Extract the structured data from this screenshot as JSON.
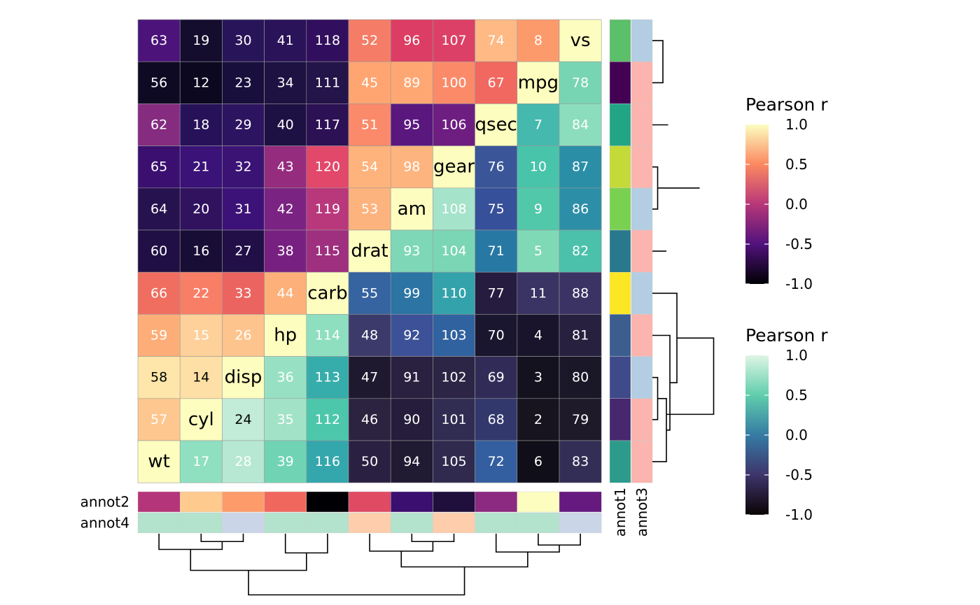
{
  "chart_data": {
    "type": "heatmap",
    "rows": [
      "vs",
      "mpg",
      "qsec",
      "gear",
      "am",
      "drat",
      "carb",
      "hp",
      "disp",
      "cyl",
      "wt"
    ],
    "cols": [
      "wt",
      "cyl",
      "disp",
      "hp",
      "carb",
      "drat",
      "am",
      "gear",
      "qsec",
      "mpg",
      "vs"
    ],
    "cells": [
      {
        "fill": "#4c137a",
        "label": "63"
      },
      {
        "fill": "#140d2e",
        "label": "19"
      },
      {
        "fill": "#281559",
        "label": "30"
      },
      {
        "fill": "#2a1359",
        "label": "41"
      },
      {
        "fill": "#320f5e",
        "label": "118"
      },
      {
        "fill": "#f57d67",
        "label": "52"
      },
      {
        "fill": "#dc3d64",
        "label": "96"
      },
      {
        "fill": "#dd4066",
        "label": "107"
      },
      {
        "fill": "#feb984",
        "label": "74"
      },
      {
        "fill": "#fd9a6c",
        "label": "8"
      },
      {
        "fill": "#fcfdbf",
        "label": "vs"
      },
      {
        "fill": "#0f0a24",
        "label": "56"
      },
      {
        "fill": "#0b0820",
        "label": "12"
      },
      {
        "fill": "#180f3d",
        "label": "23"
      },
      {
        "fill": "#1e1243",
        "label": "34"
      },
      {
        "fill": "#231449",
        "label": "111"
      },
      {
        "fill": "#fea572",
        "label": "45"
      },
      {
        "fill": "#fea773",
        "label": "89"
      },
      {
        "fill": "#fb8a69",
        "label": "100"
      },
      {
        "fill": "#f0685f",
        "label": "67"
      },
      {
        "fill": "#fcfdbf",
        "label": "mpg"
      },
      {
        "fill": "#78d5b3",
        "label": "78"
      },
      {
        "fill": "#852c80",
        "label": "62"
      },
      {
        "fill": "#27125a",
        "label": "18"
      },
      {
        "fill": "#2d1460",
        "label": "29"
      },
      {
        "fill": "#1d1042",
        "label": "40"
      },
      {
        "fill": "#2c1155",
        "label": "117"
      },
      {
        "fill": "#fb8a6a",
        "label": "51"
      },
      {
        "fill": "#5a187e",
        "label": "95"
      },
      {
        "fill": "#6e1e81",
        "label": "106"
      },
      {
        "fill": "#fcfdbf",
        "label": "qsec"
      },
      {
        "fill": "#45b9ad",
        "label": "7"
      },
      {
        "fill": "#8bddbd",
        "label": "84"
      },
      {
        "fill": "#3b0f6f",
        "label": "65"
      },
      {
        "fill": "#3b1278",
        "label": "21"
      },
      {
        "fill": "#3b1374",
        "label": "32"
      },
      {
        "fill": "#962c7e",
        "label": "43"
      },
      {
        "fill": "#e2486a",
        "label": "120"
      },
      {
        "fill": "#feb37c",
        "label": "54"
      },
      {
        "fill": "#feb47e",
        "label": "98"
      },
      {
        "fill": "#fcfdbf",
        "label": "gear"
      },
      {
        "fill": "#3a5699",
        "label": "76"
      },
      {
        "fill": "#48c4aa",
        "label": "10"
      },
      {
        "fill": "#2b8ea7",
        "label": "87"
      },
      {
        "fill": "#26124e",
        "label": "64"
      },
      {
        "fill": "#30125f",
        "label": "20"
      },
      {
        "fill": "#3d1278",
        "label": "31"
      },
      {
        "fill": "#7b2382",
        "label": "42"
      },
      {
        "fill": "#b9377b",
        "label": "119"
      },
      {
        "fill": "#fdb37d",
        "label": "53"
      },
      {
        "fill": "#fcfdbf",
        "label": "am"
      },
      {
        "fill": "#a5e3cb",
        "label": "108"
      },
      {
        "fill": "#37509a",
        "label": "75"
      },
      {
        "fill": "#52c8aa",
        "label": "9"
      },
      {
        "fill": "#2d8fa7",
        "label": "86"
      },
      {
        "fill": "#1f0f44",
        "label": "60"
      },
      {
        "fill": "#170d35",
        "label": "16"
      },
      {
        "fill": "#220f48",
        "label": "27"
      },
      {
        "fill": "#782082",
        "label": "38"
      },
      {
        "fill": "#9f2f7f",
        "label": "115"
      },
      {
        "fill": "#fcfdbf",
        "label": "drat"
      },
      {
        "fill": "#7ed8b7",
        "label": "93"
      },
      {
        "fill": "#7ad6b5",
        "label": "104"
      },
      {
        "fill": "#2878a4",
        "label": "71"
      },
      {
        "fill": "#7fd9b7",
        "label": "5"
      },
      {
        "fill": "#4bc0ab",
        "label": "82"
      },
      {
        "fill": "#ef6e5f",
        "label": "66"
      },
      {
        "fill": "#f87e66",
        "label": "22"
      },
      {
        "fill": "#ec6460",
        "label": "33"
      },
      {
        "fill": "#feb07a",
        "label": "44"
      },
      {
        "fill": "#fcfdbf",
        "label": "carb"
      },
      {
        "fill": "#3564a0",
        "label": "55"
      },
      {
        "fill": "#2b74a4",
        "label": "99"
      },
      {
        "fill": "#33a2ab",
        "label": "110"
      },
      {
        "fill": "#251c3f",
        "label": "77"
      },
      {
        "fill": "#3a3464",
        "label": "11"
      },
      {
        "fill": "#3a3364",
        "label": "88"
      },
      {
        "fill": "#fdae78",
        "label": "59"
      },
      {
        "fill": "#fed09a",
        "label": "15"
      },
      {
        "fill": "#fec48d",
        "label": "26"
      },
      {
        "fill": "#fcfdbf",
        "label": "hp"
      },
      {
        "fill": "#8ddfc0",
        "label": "114"
      },
      {
        "fill": "#3b3a6b",
        "label": "48"
      },
      {
        "fill": "#3c5197",
        "label": "92"
      },
      {
        "fill": "#3162a0",
        "label": "103"
      },
      {
        "fill": "#1b1630",
        "label": "70"
      },
      {
        "fill": "#19142c",
        "label": "4"
      },
      {
        "fill": "#27203f",
        "label": "81"
      },
      {
        "fill": "#fee5a9",
        "label": "58"
      },
      {
        "fill": "#fedfa5",
        "label": "14"
      },
      {
        "fill": "#fcfdbf",
        "label": "disp"
      },
      {
        "fill": "#97e0c4",
        "label": "36"
      },
      {
        "fill": "#36adab",
        "label": "113"
      },
      {
        "fill": "#1f192f",
        "label": "47"
      },
      {
        "fill": "#2a2040",
        "label": "91"
      },
      {
        "fill": "#2d2545",
        "label": "102"
      },
      {
        "fill": "#312c57",
        "label": "69"
      },
      {
        "fill": "#14121e",
        "label": "3"
      },
      {
        "fill": "#1a1728",
        "label": "80"
      },
      {
        "fill": "#fec78f",
        "label": "57"
      },
      {
        "fill": "#fcfdbf",
        "label": "cyl"
      },
      {
        "fill": "#c2ebd8",
        "label": "24"
      },
      {
        "fill": "#a2e3c8",
        "label": "35"
      },
      {
        "fill": "#4dc7ac",
        "label": "112"
      },
      {
        "fill": "#2b233f",
        "label": "46"
      },
      {
        "fill": "#251d3b",
        "label": "90"
      },
      {
        "fill": "#302c52",
        "label": "101"
      },
      {
        "fill": "#33386c",
        "label": "68"
      },
      {
        "fill": "#17131f",
        "label": "2"
      },
      {
        "fill": "#1e1a2a",
        "label": "79"
      },
      {
        "fill": "#fcfdbf",
        "label": "wt"
      },
      {
        "fill": "#8fdfc1",
        "label": "17"
      },
      {
        "fill": "#b6e8d3",
        "label": "28"
      },
      {
        "fill": "#70d4b4",
        "label": "39"
      },
      {
        "fill": "#34a7ac",
        "label": "116"
      },
      {
        "fill": "#2a2142",
        "label": "50"
      },
      {
        "fill": "#211a33",
        "label": "94"
      },
      {
        "fill": "#2f2a4e",
        "label": "105"
      },
      {
        "fill": "#335fa0",
        "label": "72"
      },
      {
        "fill": "#100e18",
        "label": "6"
      },
      {
        "fill": "#322e55",
        "label": "83"
      }
    ],
    "row_annotations": {
      "names": [
        "annot1",
        "annot3"
      ],
      "annot1": [
        "#5cbf6a",
        "#440154",
        "#21a585",
        "#c3da38",
        "#7ad151",
        "#2a788e",
        "#fde725",
        "#3b5e8f",
        "#3e4a89",
        "#47286e",
        "#2c9b8b"
      ],
      "annot3": [
        "#b3cde3",
        "#fbb4ae",
        "#fbb4ae",
        "#fbb4ae",
        "#b3cde3",
        "#fbb4ae",
        "#b3cde3",
        "#fbb4ae",
        "#b3cde3",
        "#fbb4ae",
        "#fbb4ae"
      ]
    },
    "col_annotations": {
      "names": [
        "annot2",
        "annot4"
      ],
      "annot2": [
        "#b5357a",
        "#feca8d",
        "#fe9b6a",
        "#f0675e",
        "#000004",
        "#e04a63",
        "#3b0f70",
        "#200f3c",
        "#8c2981",
        "#fcfdbf",
        "#661a80"
      ],
      "annot4": [
        "#b3e2cd",
        "#b3e2cd",
        "#cbd5e8",
        "#b3e2cd",
        "#b3e2cd",
        "#fdcdac",
        "#b3e2cd",
        "#fdcdac",
        "#b3e2cd",
        "#b3e2cd",
        "#cbd5e8"
      ]
    },
    "legends": [
      {
        "title": "Pearson r",
        "ticks": [
          "1.0",
          "0.5",
          "0.0",
          "-0.5",
          "-1.0"
        ],
        "colors": [
          "#fcfdbf",
          "#fc8961",
          "#b73779",
          "#51127c",
          "#000004"
        ]
      },
      {
        "title": "Pearson r",
        "ticks": [
          "1.0",
          "0.5",
          "0.0",
          "-0.5",
          "-1.0"
        ],
        "colors": [
          "#def5e5",
          "#60ceac",
          "#357ba3",
          "#3e356b",
          "#0b0405"
        ]
      }
    ],
    "row_dendrogram": [
      [
        0,
        1,
        0.6
      ],
      [
        2,
        12,
        0.9
      ],
      [
        3,
        4,
        0.3
      ],
      [
        5,
        14,
        0.8
      ],
      [
        13,
        15,
        2.7
      ],
      [
        8,
        9,
        0.3
      ],
      [
        10,
        16,
        0.8
      ],
      [
        7,
        17,
        1.0
      ],
      [
        6,
        18,
        1.4
      ],
      [
        16.5,
        19,
        3.5
      ]
    ],
    "col_dendrogram": [
      [
        1,
        2,
        0.45
      ],
      [
        0,
        11,
        0.9
      ],
      [
        3,
        4,
        1.1
      ],
      [
        12,
        13,
        2.1
      ],
      [
        6,
        7,
        0.45
      ],
      [
        5,
        15,
        1.0
      ],
      [
        9,
        10,
        0.65
      ],
      [
        8,
        17,
        1.05
      ],
      [
        16,
        18,
        1.9
      ],
      [
        14,
        19,
        3.5
      ]
    ]
  }
}
